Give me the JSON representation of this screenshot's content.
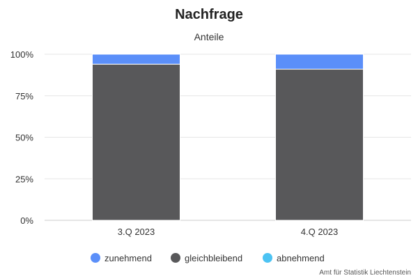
{
  "chart_data": {
    "type": "bar",
    "stacked": true,
    "title": "Nachfrage",
    "subtitle": "Anteile",
    "categories": [
      "3.Q 2023",
      "4.Q 2023"
    ],
    "series": [
      {
        "name": "zunehmend",
        "color": "#5b8ff9",
        "values": [
          6,
          9
        ]
      },
      {
        "name": "gleichbleibend",
        "color": "#58585a",
        "values": [
          94,
          91
        ]
      },
      {
        "name": "abnehmend",
        "color": "#4cc3f3",
        "values": [
          0,
          0
        ]
      }
    ],
    "ylim": [
      0,
      100
    ],
    "yticks": [
      0,
      25,
      50,
      75,
      100
    ],
    "ytick_labels": [
      "0%",
      "25%",
      "50%",
      "75%",
      "100%"
    ],
    "grid": true,
    "legend_position": "bottom",
    "credit": "Amt für Statistik Liechtenstein"
  }
}
